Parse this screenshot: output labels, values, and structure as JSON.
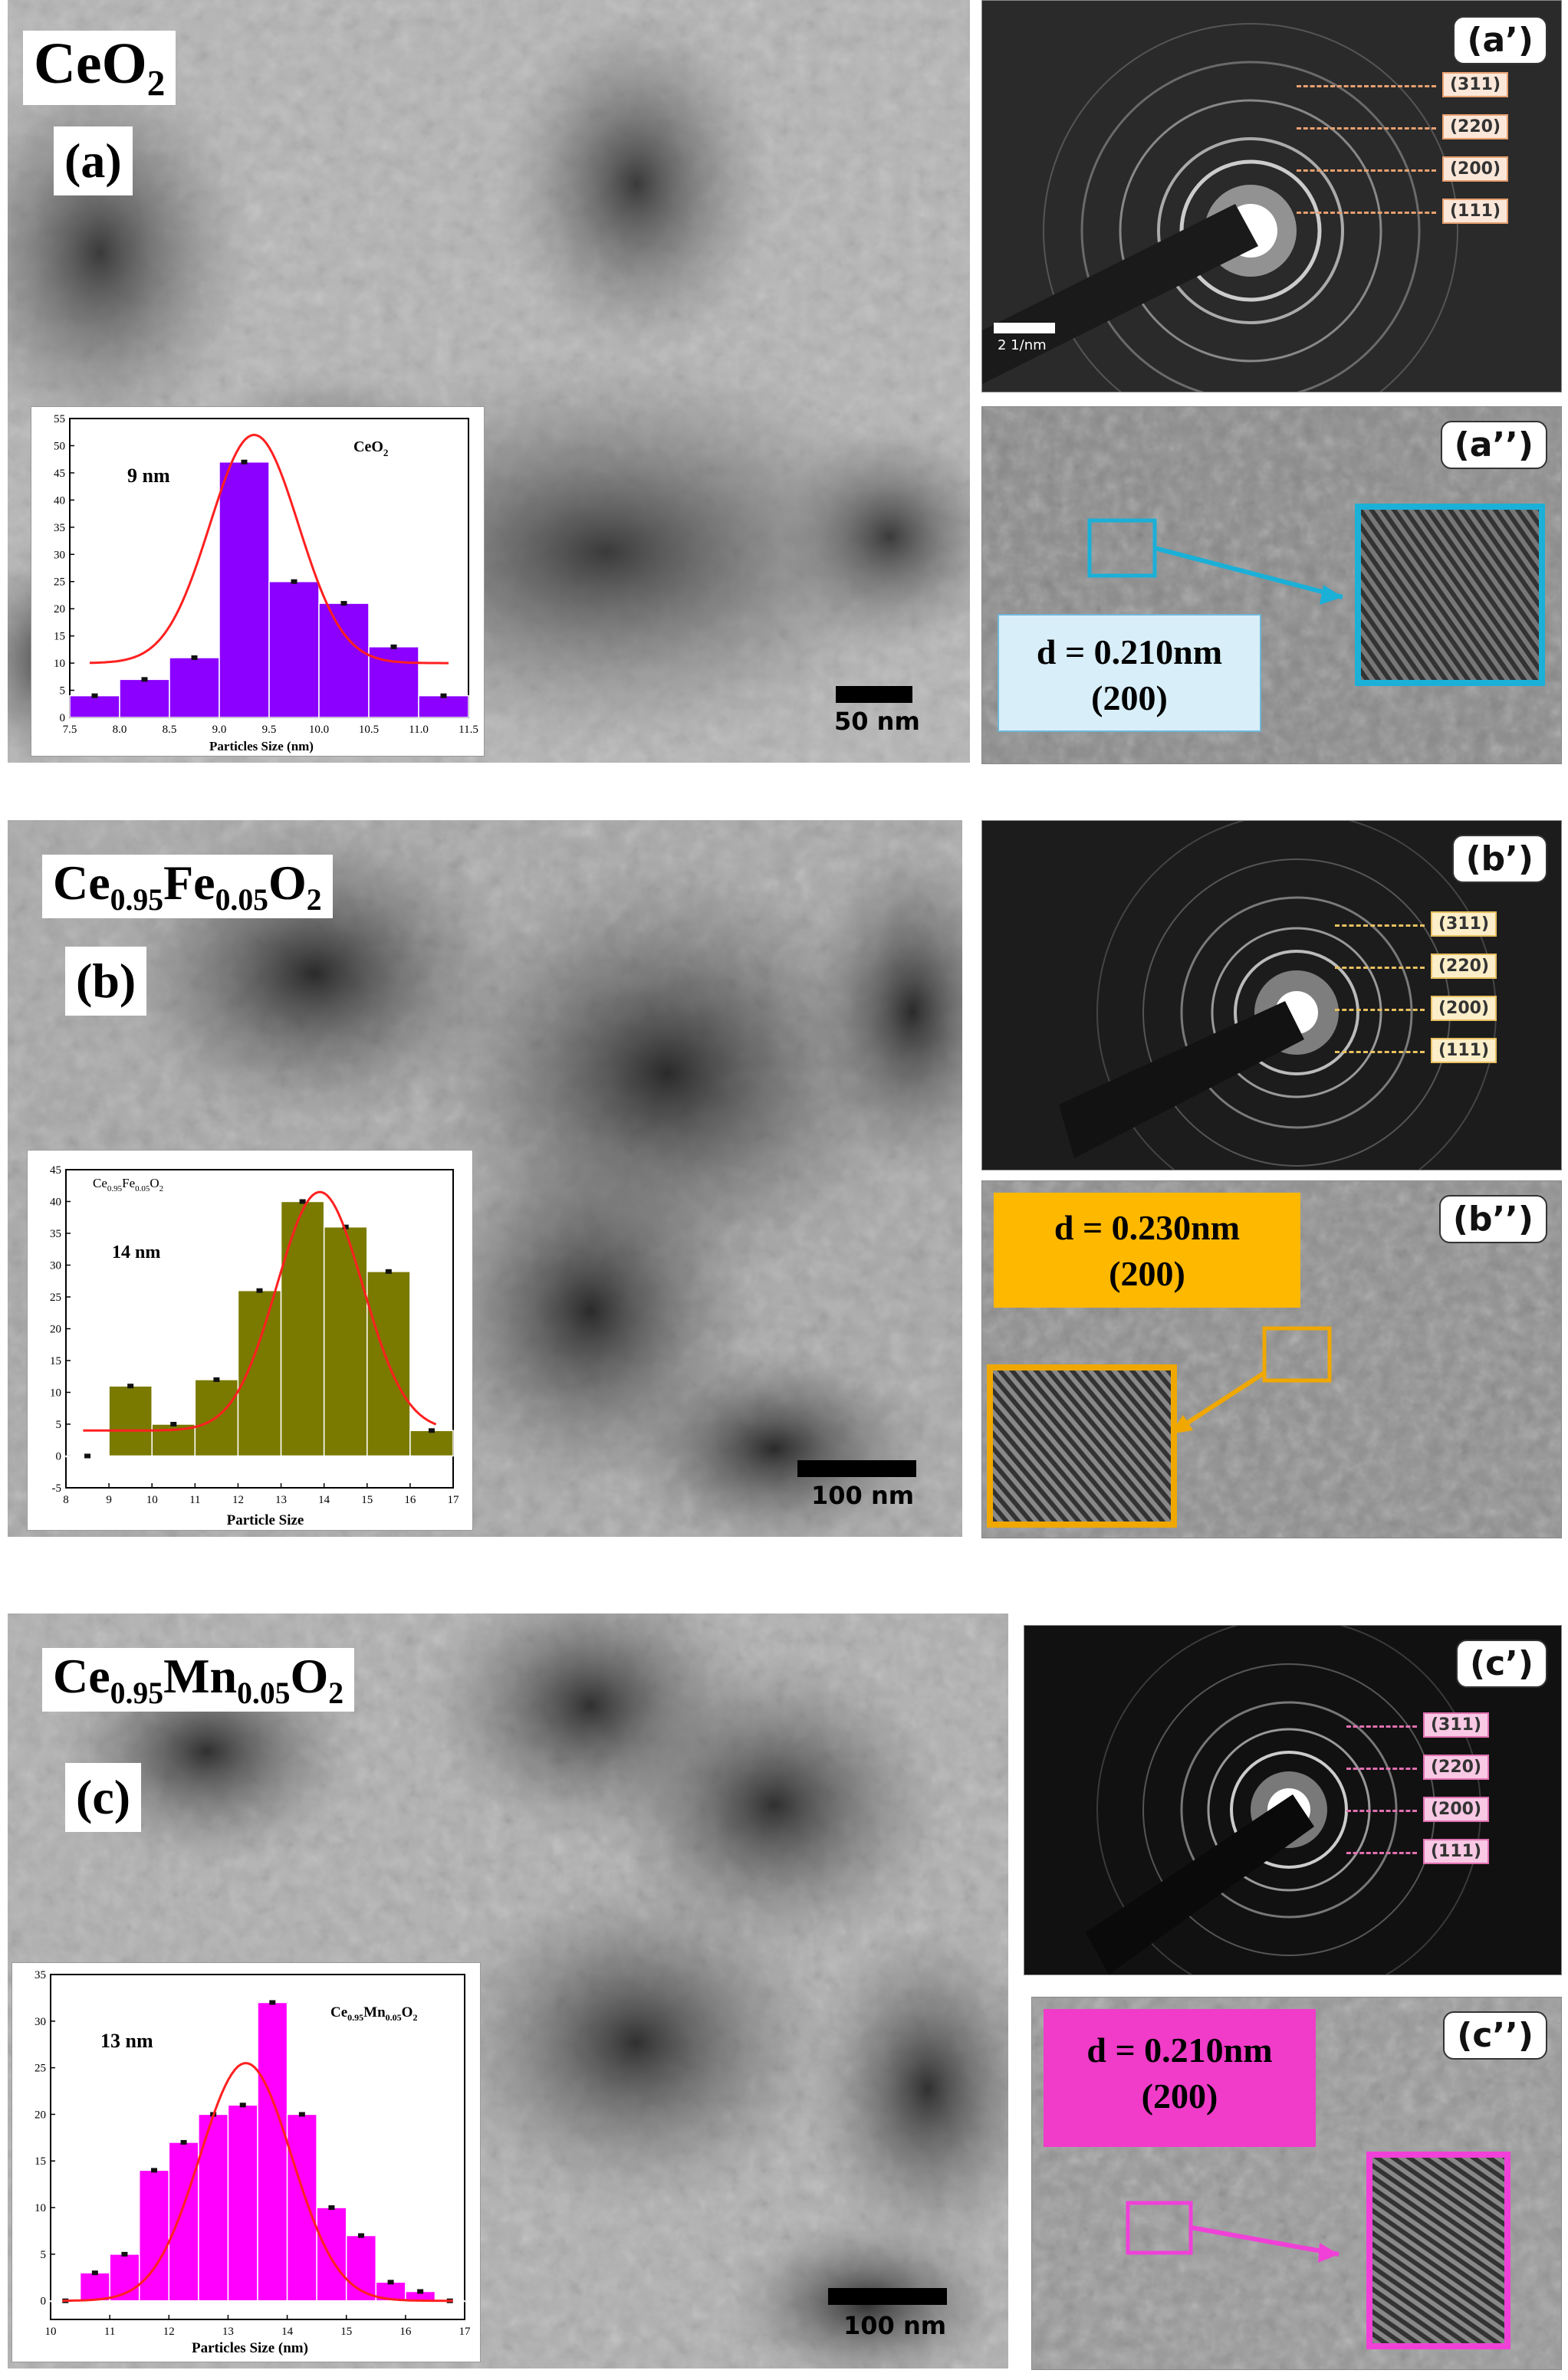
{
  "rows": [
    {
      "tem_title_main": "CeO",
      "tem_title_subs": [
        [
          "",
          "2"
        ]
      ],
      "panel_label": "(a)",
      "scale_label": "50 nm",
      "saed_tag": "(a’)",
      "hrtem_tag": "(a’’)",
      "saed_scale_label": "2 1/nm",
      "rings": [
        "(311)",
        "(220)",
        "(200)",
        "(111)"
      ],
      "ring_color": "#e8a070",
      "ring_fill": "#fbe7d9",
      "d_spacing": "d = 0.210nm",
      "plane": "(200)",
      "d_box_color": "#d8eef8",
      "highlight_color": "#1ab0d8",
      "inset_label": "9 nm",
      "inset_title": "CeO",
      "inset_title_sub": "2",
      "bar_color": "#8b00ff"
    },
    {
      "tem_title_main": "Ce",
      "tem_title_subs": [
        [
          "0.95",
          "Fe"
        ],
        [
          "0.05",
          "O"
        ],
        [
          "2",
          ""
        ]
      ],
      "panel_label": "(b)",
      "scale_label": "100 nm",
      "saed_tag": "(b’)",
      "hrtem_tag": "(b’’)",
      "saed_scale_label": "",
      "rings": [
        "(311)",
        "(220)",
        "(200)",
        "(111)"
      ],
      "ring_color": "#e8c060",
      "ring_fill": "#fbeec8",
      "d_spacing": "d = 0.230nm",
      "plane": "(200)",
      "d_box_color": "#ffb800",
      "highlight_color": "#f0a800",
      "inset_label": "14 nm",
      "inset_title": "Ce",
      "inset_title_sub": "0.95Fe0.05O2",
      "bar_color": "#7a7a00"
    },
    {
      "tem_title_main": "Ce",
      "tem_title_subs": [
        [
          "0.95",
          "Mn"
        ],
        [
          "0.05",
          "O"
        ],
        [
          "2",
          ""
        ]
      ],
      "panel_label": "(c)",
      "scale_label": "100 nm",
      "saed_tag": "(c’)",
      "hrtem_tag": "(c’’)",
      "saed_scale_label": "",
      "rings": [
        "(311)",
        "(220)",
        "(200)",
        "(111)"
      ],
      "ring_color": "#e070b0",
      "ring_fill": "#f8c8e4",
      "d_spacing": "d = 0.210nm",
      "plane": "(200)",
      "d_box_color": "#f03cc8",
      "highlight_color": "#f040d8",
      "inset_label": "13 nm",
      "inset_title": "Ce",
      "inset_title_sub": "0.95Mn0.05O2",
      "bar_color": "#ff00ff"
    }
  ],
  "chart_data": [
    {
      "type": "bar",
      "title": "CeO2",
      "annotation": "9 nm",
      "xlabel": "Particles Size (nm)",
      "ylabel": "",
      "xticks": [
        "7.5",
        "8.0",
        "8.5",
        "9.0",
        "9.5",
        "10.0",
        "10.5",
        "11.0",
        "11.5"
      ],
      "yticks": [
        "0",
        "5",
        "10",
        "15",
        "20",
        "25",
        "30",
        "35",
        "40",
        "45",
        "50",
        "55"
      ],
      "xlim": [
        7.5,
        11.5
      ],
      "ylim": [
        0,
        55
      ],
      "bin_width": 0.5,
      "x": [
        7.75,
        8.25,
        8.75,
        9.25,
        9.75,
        10.25,
        10.75,
        11.25
      ],
      "values": [
        4,
        7,
        11,
        47,
        25,
        21,
        13,
        4
      ],
      "fit_peak": [
        9.35,
        52
      ],
      "fit_base": 10,
      "bar_color": "#8b00ff"
    },
    {
      "type": "bar",
      "title": "Ce0.95Fe0.05O2",
      "annotation": "14 nm",
      "xlabel": "Particle Size",
      "ylabel": "",
      "xticks": [
        "8",
        "9",
        "10",
        "11",
        "12",
        "13",
        "14",
        "15",
        "16",
        "17"
      ],
      "yticks": [
        "-5",
        "0",
        "5",
        "10",
        "15",
        "20",
        "25",
        "30",
        "35",
        "40",
        "45"
      ],
      "xlim": [
        8,
        17
      ],
      "ylim": [
        -5,
        45
      ],
      "bin_width": 1,
      "x": [
        8.5,
        9.5,
        10.5,
        11.5,
        12.5,
        13.5,
        14.5,
        15.5,
        16.5
      ],
      "values": [
        0,
        11,
        5,
        12,
        26,
        40,
        36,
        29,
        4
      ],
      "fit_peak": [
        13.9,
        41.5
      ],
      "fit_base": 4,
      "bar_color": "#7a7a00"
    },
    {
      "type": "bar",
      "title": "Ce0.95Mn0.05O2",
      "annotation": "13 nm",
      "xlabel": "Particles Size (nm)",
      "ylabel": "",
      "xticks": [
        "10",
        "11",
        "12",
        "13",
        "14",
        "15",
        "16",
        "17"
      ],
      "yticks": [
        "0",
        "5",
        "10",
        "15",
        "20",
        "25",
        "30",
        "35"
      ],
      "xlim": [
        10,
        17
      ],
      "ylim": [
        -2,
        35
      ],
      "bin_width": 0.5,
      "x": [
        10.25,
        10.75,
        11.25,
        11.75,
        12.25,
        12.75,
        13.25,
        13.75,
        14.25,
        14.75,
        15.25,
        15.75,
        16.25,
        16.75
      ],
      "values": [
        0,
        3,
        5,
        14,
        17,
        20,
        21,
        32,
        20,
        10,
        7,
        2,
        1,
        0
      ],
      "fit_peak": [
        13.3,
        25.5
      ],
      "fit_base": 0,
      "bar_color": "#ff00ff"
    }
  ]
}
